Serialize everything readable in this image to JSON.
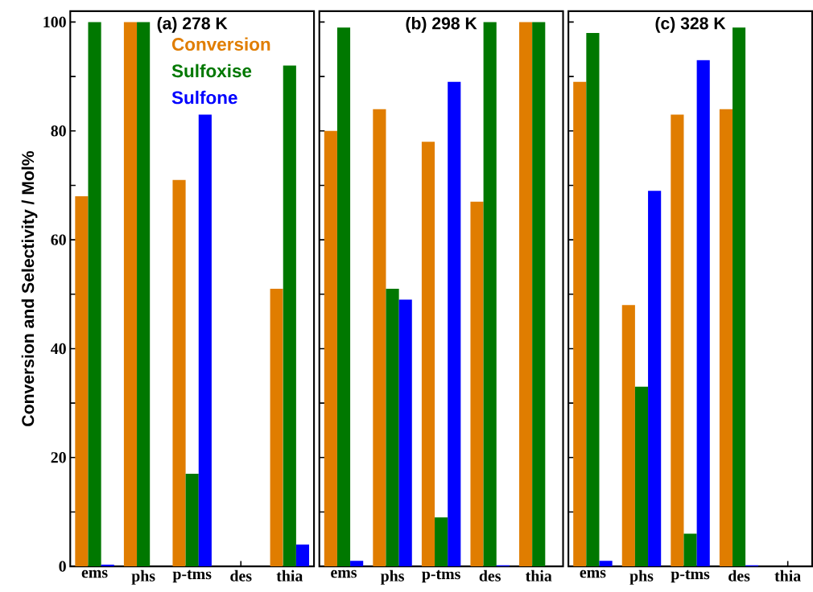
{
  "chart_data": [
    {
      "type": "bar",
      "title": "(a) 278 K",
      "ylabel": "Conversion and Selectivity / Mol%",
      "categories": [
        "ems",
        "phs",
        "p-tms",
        "des",
        "thia"
      ],
      "legend": "top",
      "series": [
        {
          "name": "Conversion",
          "color": "#e07d00",
          "values": [
            68,
            100,
            71,
            null,
            51
          ]
        },
        {
          "name": "Sulfoxise",
          "color": "#007800",
          "values": [
            100,
            100,
            17,
            null,
            92
          ]
        },
        {
          "name": "Sulfone",
          "color": "#0000ff",
          "values": [
            0.3,
            null,
            83,
            null,
            4
          ]
        }
      ],
      "ylim": [
        0,
        102
      ],
      "yticks": [
        0,
        {
          "value": 10,
          "label": null
        },
        20,
        {
          "value": 30,
          "label": null
        },
        40,
        {
          "value": 50,
          "label": null
        },
        60,
        {
          "value": 70,
          "label": null
        },
        80,
        {
          "value": 90,
          "label": null
        },
        100
      ]
    },
    {
      "type": "bar",
      "title": "(b) 298 K",
      "categories": [
        "ems",
        "phs",
        "p-tms",
        "des",
        "thia"
      ],
      "series": [
        {
          "color": "#e07d00",
          "values": [
            80,
            84,
            78,
            67,
            100
          ]
        },
        {
          "color": "#007800",
          "values": [
            99,
            51,
            9,
            100,
            100
          ]
        },
        {
          "color": "#0000ff",
          "values": [
            1,
            49,
            89,
            0.2,
            null
          ]
        }
      ],
      "ylim": [
        0,
        102
      ],
      "yticks": [
        0,
        10,
        20,
        30,
        40,
        50,
        60,
        70,
        80,
        90,
        100
      ],
      "tick_labels": "x"
    },
    {
      "type": "bar",
      "title": "(c) 328 K",
      "categories": [
        "ems",
        "phs",
        "p-tms",
        "des",
        "thia"
      ],
      "series": [
        {
          "color": "#e07d00",
          "values": [
            89,
            48,
            83,
            84,
            null
          ]
        },
        {
          "color": "#007800",
          "values": [
            98,
            33,
            6,
            99,
            null
          ]
        },
        {
          "color": "#0000ff",
          "values": [
            1,
            69,
            93,
            0.2,
            null
          ]
        }
      ],
      "ylim": [
        0,
        102
      ],
      "yticks": [
        0,
        10,
        20,
        30,
        40,
        50,
        60,
        70,
        80,
        90,
        100
      ],
      "tick_labels": "x"
    }
  ]
}
